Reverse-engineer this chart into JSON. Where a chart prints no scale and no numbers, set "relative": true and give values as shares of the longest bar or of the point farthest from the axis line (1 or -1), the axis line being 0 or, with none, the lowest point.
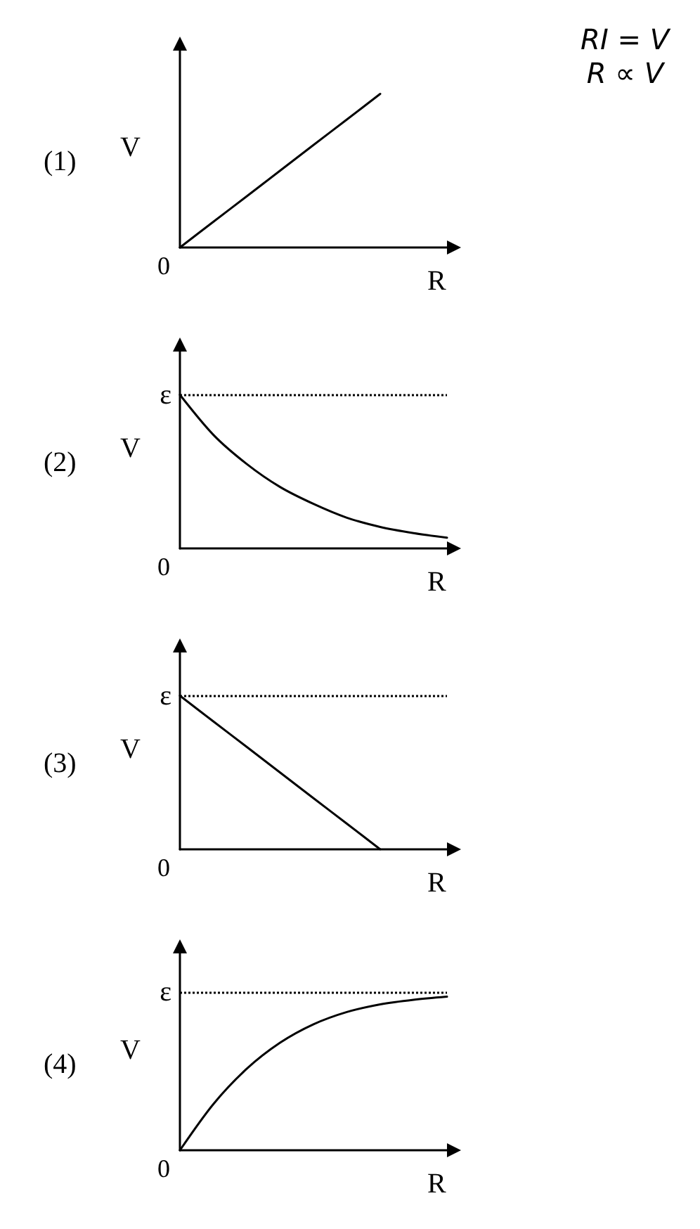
{
  "chart_data": [
    {
      "type": "line",
      "title": "(1)",
      "xlabel": "R",
      "ylabel": "V",
      "relative": true,
      "categories": [
        null,
        null,
        null,
        null,
        null,
        null,
        null,
        null,
        null
      ],
      "values": [
        0,
        0.167,
        0.333,
        0.5,
        0.667,
        0.833,
        1,
        null,
        null
      ],
      "color": "#000000",
      "marker": "none",
      "grid": false,
      "annotations": [
        "0",
        "RI = V",
        "R ∝ V"
      ]
    },
    {
      "type": "line",
      "title": "(2)",
      "xlabel": "R",
      "ylabel": "V",
      "relative": true,
      "categories": [
        null,
        null,
        null,
        null,
        null,
        null,
        null,
        null,
        null
      ],
      "values": [
        1,
        0.74,
        0.55,
        0.4,
        0.29,
        0.2,
        0.14,
        0.1,
        0.07
      ],
      "color": "#000000",
      "marker": "none",
      "grid": false,
      "annotations": [
        "0"
      ],
      "ref_lines": [
        {
          "axis": "y",
          "value": 1,
          "label": "ε",
          "line_style": "dotted"
        }
      ]
    },
    {
      "type": "line",
      "title": "(3)",
      "xlabel": "R",
      "ylabel": "V",
      "relative": true,
      "categories": [
        null,
        null,
        null,
        null,
        null,
        null,
        null,
        null,
        null
      ],
      "values": [
        1,
        0.833,
        0.667,
        0.5,
        0.333,
        0.167,
        0,
        null,
        null
      ],
      "color": "#000000",
      "marker": "none",
      "grid": false,
      "annotations": [
        "0"
      ],
      "ref_lines": [
        {
          "axis": "y",
          "value": 1,
          "label": "ε",
          "line_style": "dotted"
        }
      ]
    },
    {
      "type": "line",
      "title": "(4)",
      "xlabel": "R",
      "ylabel": "V",
      "relative": true,
      "categories": [
        null,
        null,
        null,
        null,
        null,
        null,
        null,
        null,
        null
      ],
      "values": [
        0,
        0.3,
        0.53,
        0.7,
        0.82,
        0.9,
        0.95,
        0.98,
        1
      ],
      "color": "#000000",
      "marker": "none",
      "grid": false,
      "annotations": [
        "0"
      ],
      "ref_lines": [
        {
          "axis": "y",
          "value": 1.03,
          "label": "ε",
          "line_style": "dotted"
        }
      ]
    }
  ]
}
